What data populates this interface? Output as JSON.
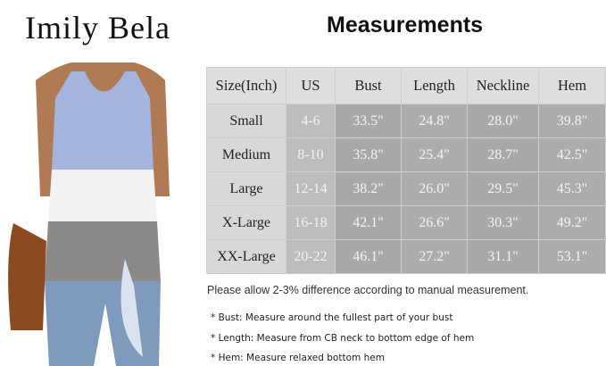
{
  "brand": "Imily Bela",
  "title": "Measurements",
  "table": {
    "headers": [
      "Size(Inch)",
      "US",
      "Bust",
      "Length",
      "Neckline",
      "Hem"
    ],
    "rows": [
      [
        "Small",
        "4-6",
        "33.5\"",
        "24.8\"",
        "28.0\"",
        "39.8\""
      ],
      [
        "Medium",
        "8-10",
        "35.8\"",
        "25.4\"",
        "28.7\"",
        "42.5\""
      ],
      [
        "Large",
        "12-14",
        "38.2\"",
        "26.0\"",
        "29.5\"",
        "45.3\""
      ],
      [
        "X-Large",
        "16-18",
        "42.1\"",
        "26.6\"",
        "30.3\"",
        "49.2\""
      ],
      [
        "XX-Large",
        "20-22",
        "46.1\"",
        "27.2\"",
        "31.1\"",
        "53.1\""
      ]
    ]
  },
  "note": "Please allow 2-3% difference according to manual measurement.",
  "bullets": [
    "* Bust: Measure around the fullest part of your bust",
    "* Length: Measure from CB neck to bottom edge of hem",
    "* Hem: Measure relaxed bottom hem"
  ],
  "colors": {
    "stripe_top": "#a4b4de",
    "stripe_mid": "#f2f2f2",
    "stripe_bottom": "#8a8a8a"
  }
}
